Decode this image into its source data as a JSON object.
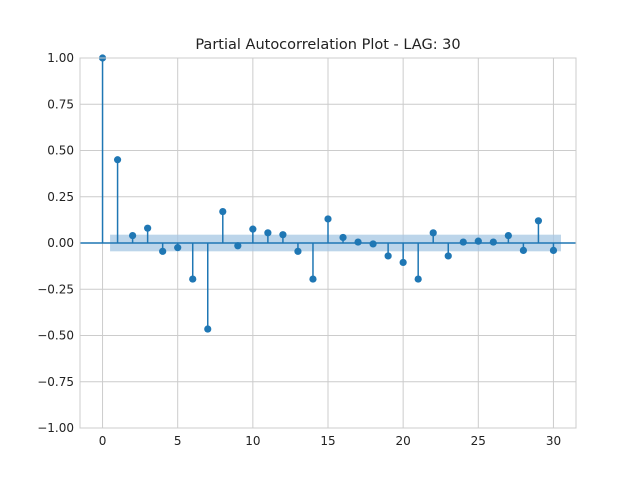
{
  "chart_data": {
    "type": "stem",
    "title": "Partial Autocorrelation Plot - LAG: 30",
    "xlabel": "",
    "ylabel": "",
    "xlim": [
      -1.5,
      31.5
    ],
    "ylim": [
      -1.0,
      1.0
    ],
    "xticks": [
      0,
      5,
      10,
      15,
      20,
      25,
      30
    ],
    "xtick_labels": [
      "0",
      "5",
      "10",
      "15",
      "20",
      "25",
      "30"
    ],
    "yticks": [
      -1.0,
      -0.75,
      -0.5,
      -0.25,
      0.0,
      0.25,
      0.5,
      0.75,
      1.0
    ],
    "ytick_labels": [
      "−1.00",
      "−0.75",
      "−0.50",
      "−0.25",
      "0.00",
      "0.25",
      "0.50",
      "0.75",
      "1.00"
    ],
    "grid": true,
    "confidence_band": {
      "lower": -0.045,
      "upper": 0.045,
      "x_start": 0.5,
      "x_end": 30.5
    },
    "lags": [
      0,
      1,
      2,
      3,
      4,
      5,
      6,
      7,
      8,
      9,
      10,
      11,
      12,
      13,
      14,
      15,
      16,
      17,
      18,
      19,
      20,
      21,
      22,
      23,
      24,
      25,
      26,
      27,
      28,
      29,
      30
    ],
    "values": [
      1.0,
      0.45,
      0.04,
      0.08,
      -0.045,
      -0.025,
      -0.195,
      -0.465,
      0.17,
      -0.015,
      0.075,
      0.055,
      0.045,
      -0.045,
      -0.195,
      0.13,
      0.03,
      0.005,
      -0.005,
      -0.07,
      -0.105,
      -0.195,
      0.055,
      -0.07,
      0.005,
      0.01,
      0.005,
      0.04,
      -0.04,
      0.12,
      -0.04
    ],
    "colors": {
      "stem": "#1f77b4",
      "band": "#a6c7e3",
      "grid": "#cccccc",
      "axes_edge": "#cccccc"
    }
  }
}
